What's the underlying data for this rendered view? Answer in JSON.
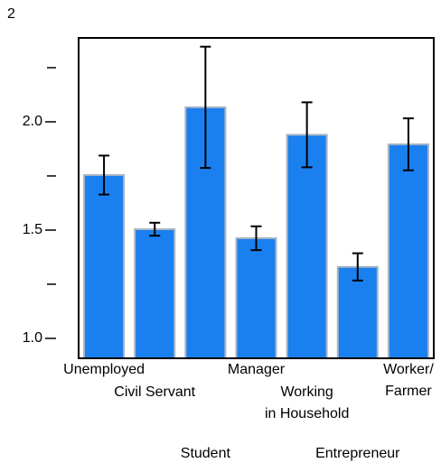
{
  "chart_data": {
    "type": "bar",
    "y_label": "2",
    "categories": [
      "Unemployed",
      "Civil Servant",
      "Student",
      "Manager",
      "Working\nin Household",
      "Entrepreneur",
      "Worker/\nFarmer"
    ],
    "values": [
      1.754,
      1.504,
      2.067,
      1.4625,
      1.94,
      1.33,
      1.896
    ],
    "errors": [
      0.09,
      0.03,
      0.28,
      0.055,
      0.15,
      0.063,
      0.12
    ],
    "color": "#1a80f0",
    "ylim": [
      0.908,
      2.3875
    ],
    "yticks": [
      {
        "value": 1,
        "label": "1.0"
      },
      1.5,
      {
        "value": 2,
        "label": "2.0"
      }
    ],
    "minor_yticks": [
      1.25,
      1.75,
      2.25
    ]
  }
}
